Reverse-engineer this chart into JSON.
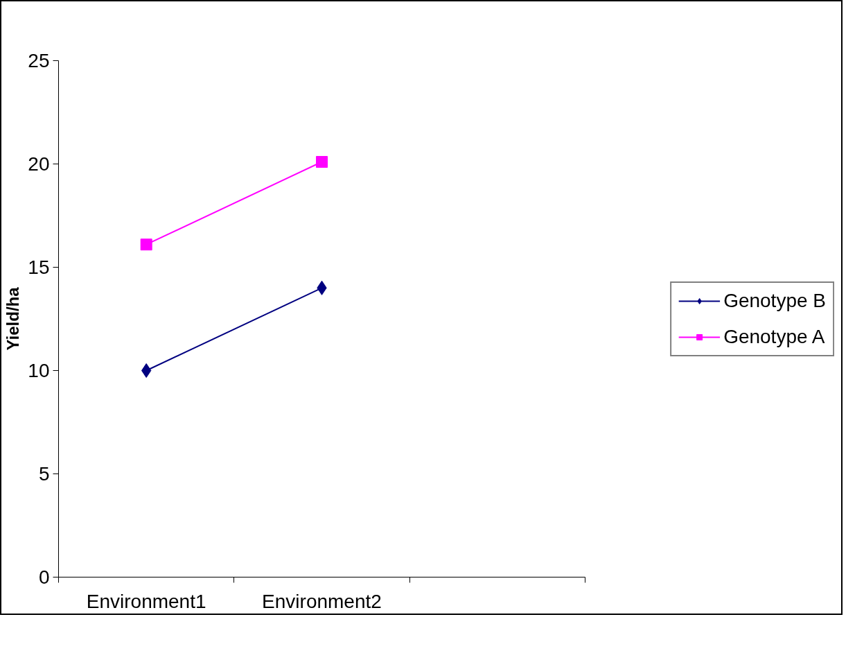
{
  "chart_data": {
    "type": "line",
    "ylabel": "Yield/ha",
    "categories": [
      "Environment1",
      "Environment2",
      null
    ],
    "series": [
      {
        "name": "Genotype B",
        "color": "#000080",
        "marker": "diamond",
        "values": [
          10,
          14,
          null
        ]
      },
      {
        "name": "Genotype A",
        "color": "#ff00ff",
        "marker": "square",
        "values": [
          16.1,
          20.1,
          null
        ]
      }
    ],
    "ylim": [
      0,
      25
    ],
    "yticks": [
      0,
      5,
      10,
      15,
      20,
      25
    ],
    "grid": false,
    "legend": "right"
  }
}
